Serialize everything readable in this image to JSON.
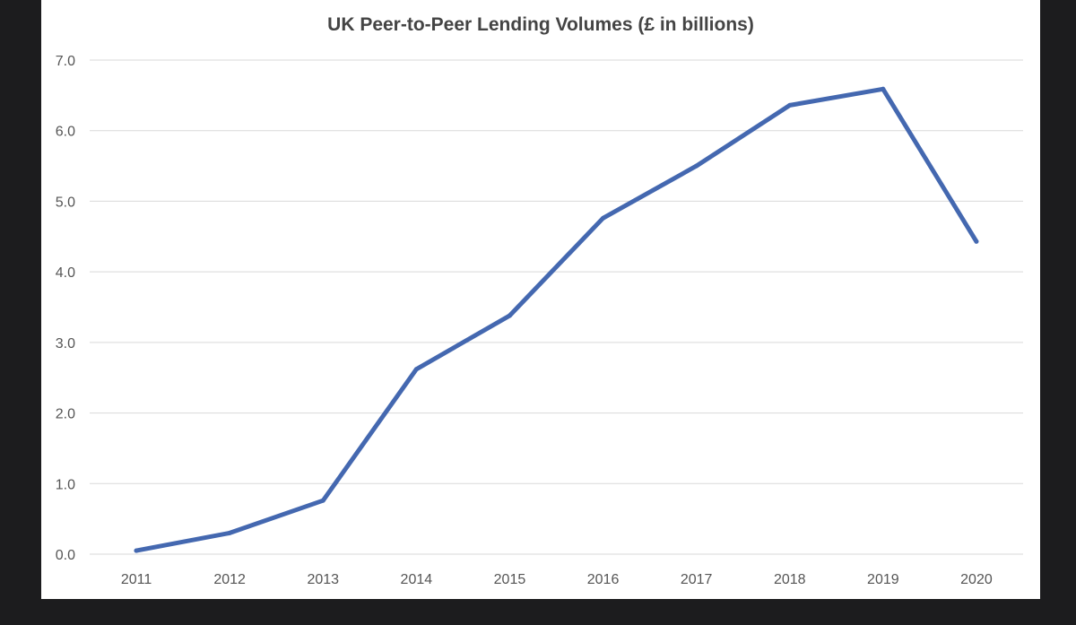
{
  "chart_data": {
    "type": "line",
    "title": "UK Peer-to-Peer Lending Volumes (£ in billions)",
    "xlabel": "",
    "ylabel": "",
    "categories": [
      "2011",
      "2012",
      "2013",
      "2014",
      "2015",
      "2016",
      "2017",
      "2018",
      "2019",
      "2020"
    ],
    "series": [
      {
        "values": [
          0.05,
          0.3,
          0.76,
          2.62,
          3.38,
          4.76,
          5.5,
          6.36,
          6.59,
          4.43
        ],
        "color": "#4468b0"
      }
    ],
    "ylim": [
      0,
      7
    ],
    "yticks": [
      "0.0",
      "1.0",
      "2.0",
      "3.0",
      "4.0",
      "5.0",
      "6.0",
      "7.0"
    ],
    "grid": true,
    "legend": "none"
  }
}
